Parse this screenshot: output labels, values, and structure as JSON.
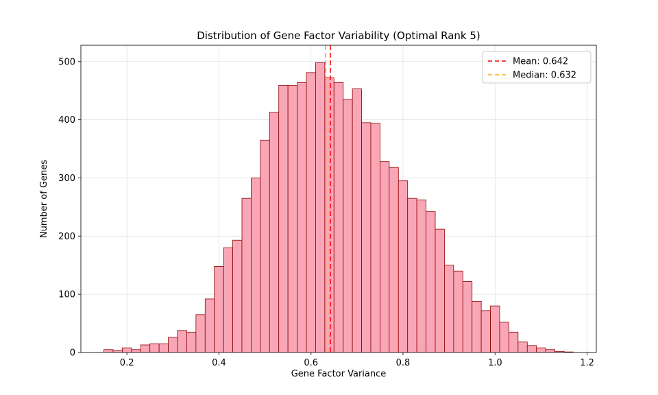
{
  "chart_data": {
    "type": "bar",
    "subtype": "histogram",
    "title": "Distribution of Gene Factor Variability (Optimal Rank 5)",
    "xlabel": "Gene Factor Variance",
    "ylabel": "Number of Genes",
    "bin_start": 0.15,
    "bin_width": 0.02,
    "values": [
      5,
      3,
      8,
      5,
      13,
      15,
      15,
      26,
      38,
      35,
      65,
      92,
      148,
      180,
      193,
      265,
      300,
      365,
      413,
      459,
      459,
      464,
      481,
      498,
      472,
      464,
      435,
      453,
      395,
      394,
      328,
      318,
      295,
      265,
      262,
      242,
      212,
      150,
      140,
      122,
      88,
      72,
      80,
      52,
      35,
      18,
      12,
      8,
      5,
      2,
      1
    ],
    "xlim": [
      0.1,
      1.22
    ],
    "ylim": [
      0,
      528
    ],
    "xticks": [
      0.2,
      0.4,
      0.6,
      0.8,
      1.0,
      1.2
    ],
    "yticks": [
      0,
      100,
      200,
      300,
      400,
      500
    ],
    "grid": true,
    "bar_color": "#f9a7b6",
    "bar_edge": "#8b0000",
    "mean": {
      "value": 0.642,
      "label": "Mean: 0.642",
      "color": "#ff0000"
    },
    "median": {
      "value": 0.632,
      "label": "Median: 0.632",
      "color": "#ffa500"
    },
    "legend_position": "top-right"
  }
}
